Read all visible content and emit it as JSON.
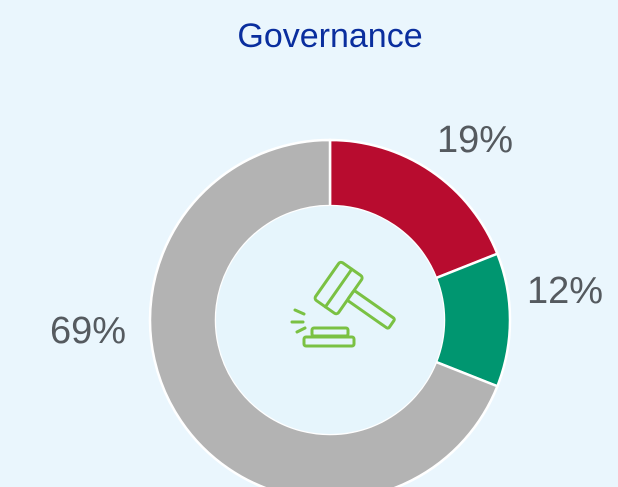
{
  "chart_data": {
    "type": "donut",
    "title": "Governance",
    "categories": [
      null,
      null,
      null
    ],
    "values": [
      19,
      12,
      69
    ],
    "value_labels": [
      "19%",
      "12%",
      "69%"
    ],
    "colors": [
      "#b80c2f",
      "#009670",
      "#b3b3b3"
    ]
  }
}
